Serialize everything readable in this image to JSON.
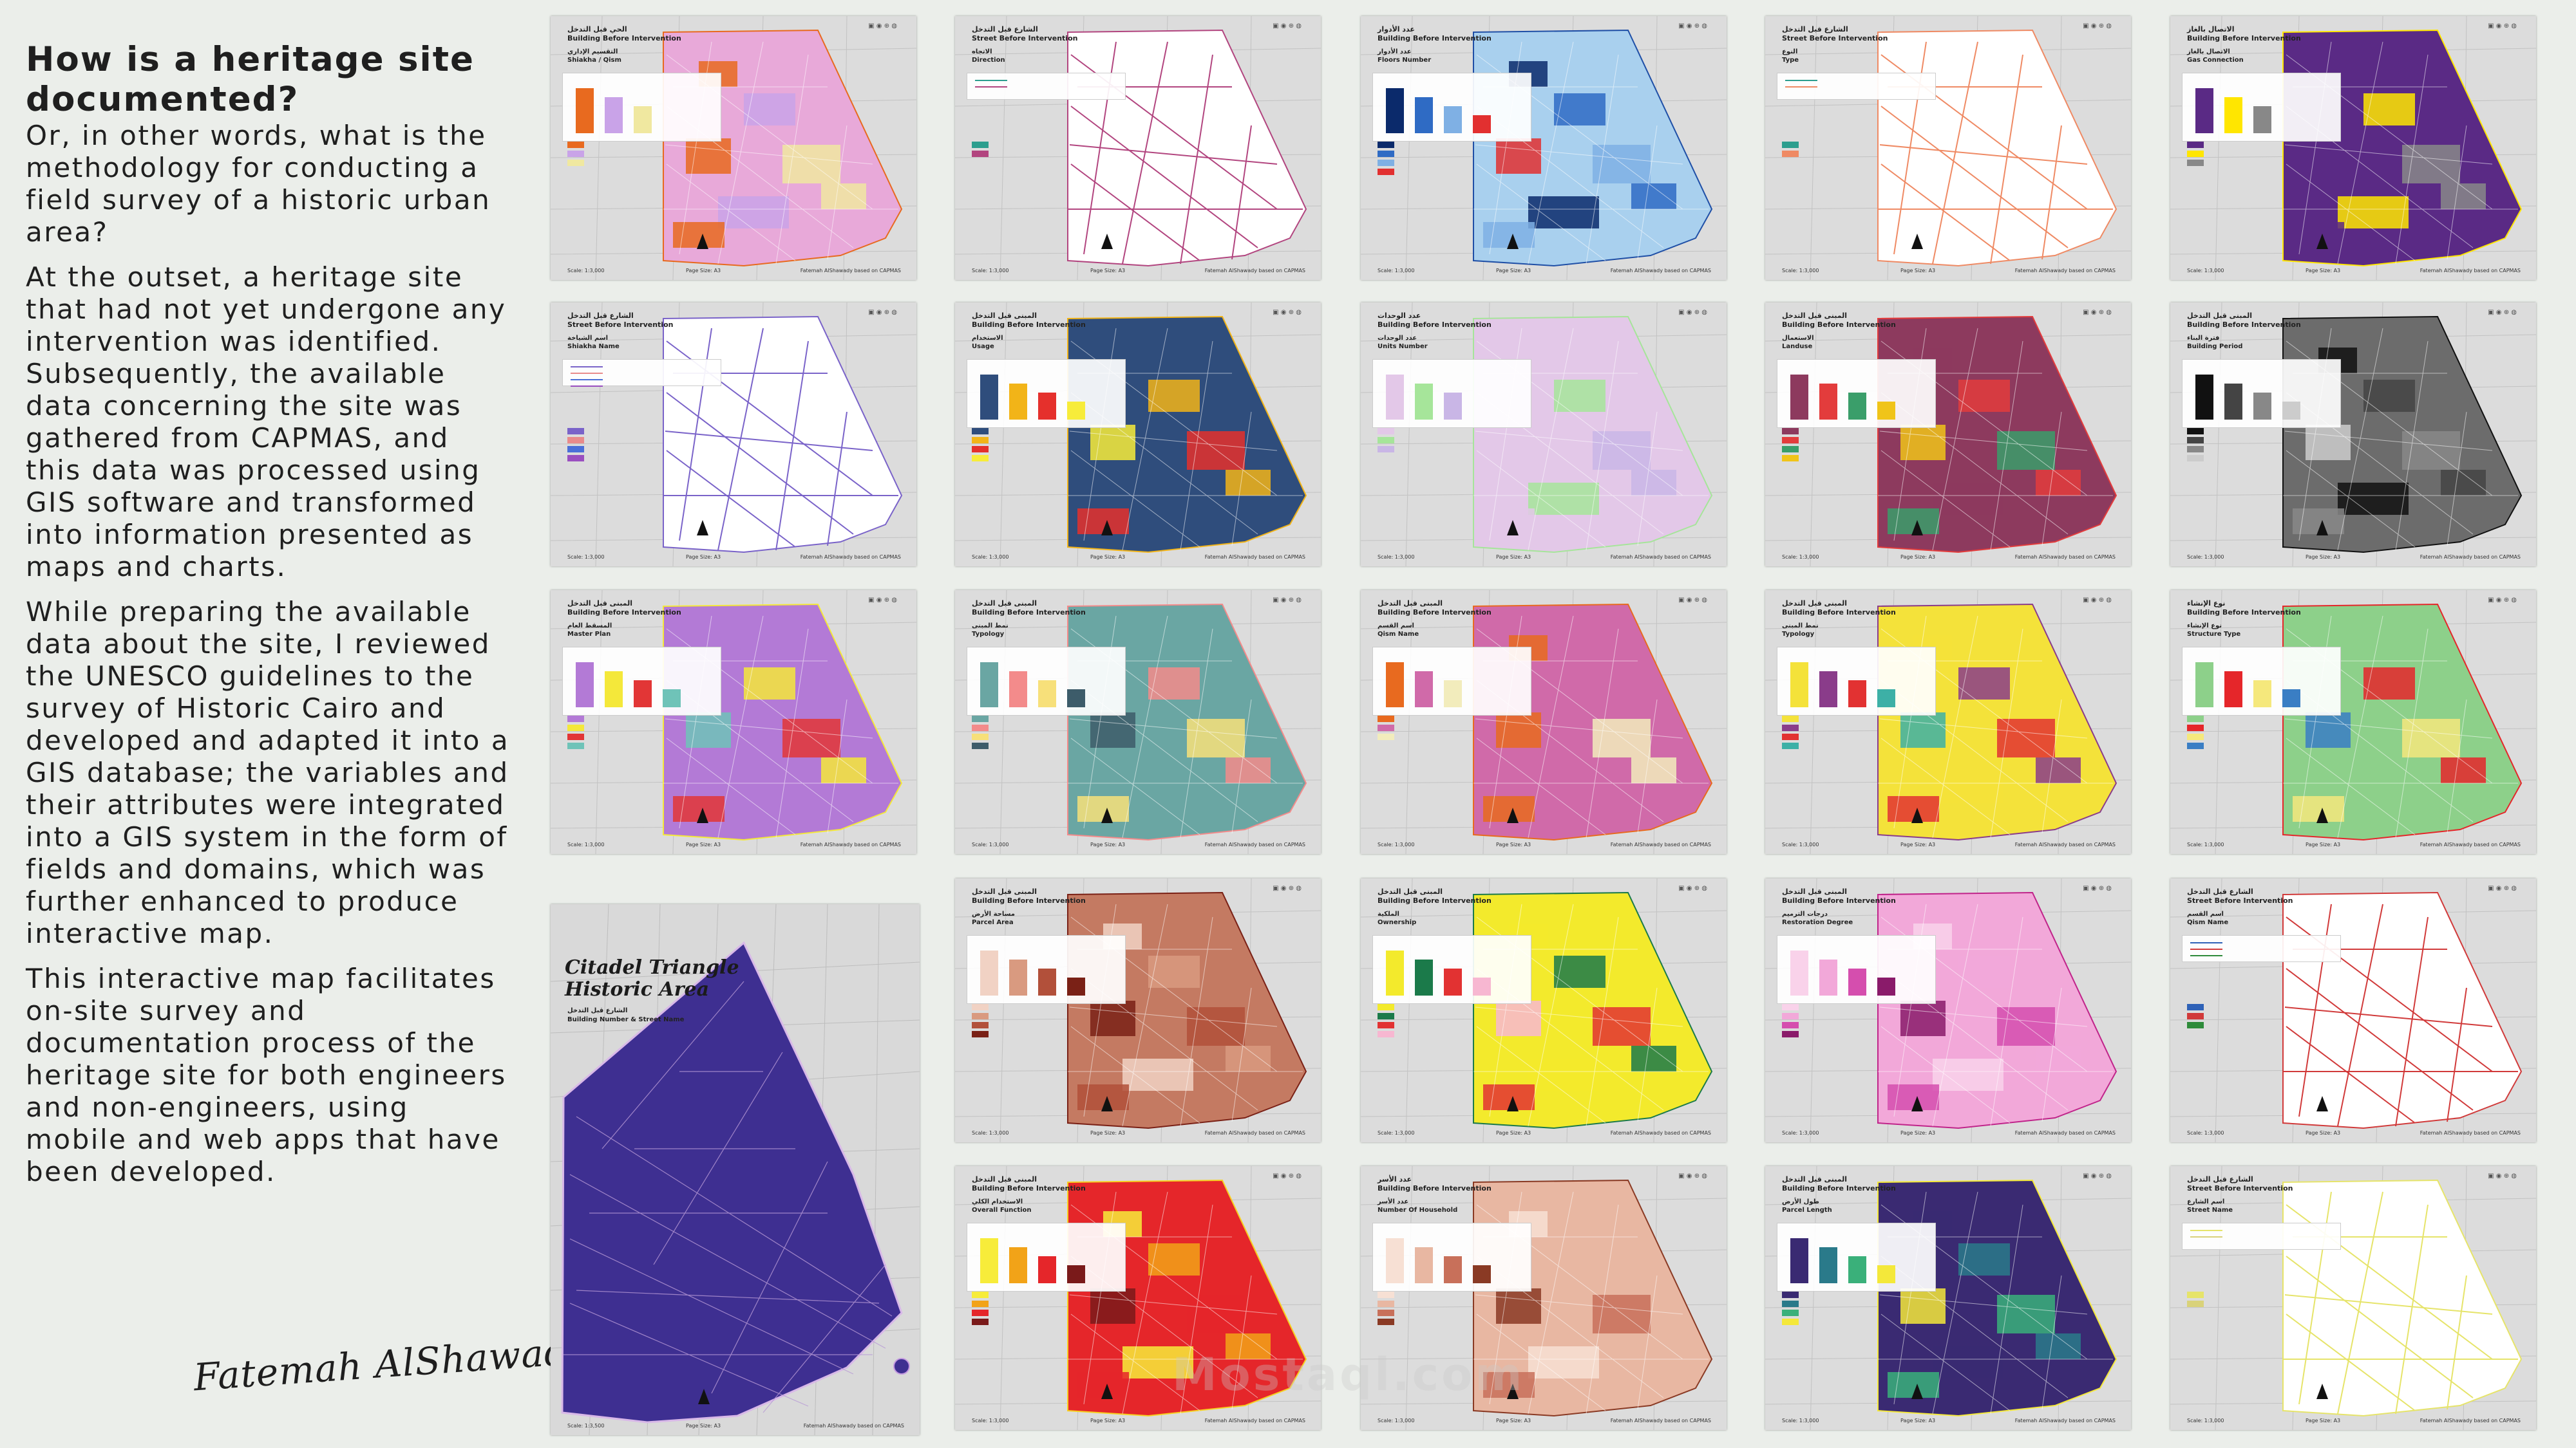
{
  "intro": {
    "title": "How is a heritage site documented?",
    "paragraphs": [
      "Or, in other words, what is the methodology for conducting a field survey of a historic urban area?",
      "At the outset, a heritage site that had not yet undergone any intervention was identified. Subsequently, the available data concerning the site was gathered from CAPMAS, and this data was processed using GIS software and transformed into information presented as maps and charts.",
      "While preparing the available data about the site, I reviewed the UNESCO guidelines to the survey of Historic Cairo and developed and adapted it into a GIS database; the variables and their attributes were integrated into a GIS system in the form of fields and domains, which was further enhanced to produce interactive map.",
      "This interactive map facilitates on-site survey and documentation process of the heritage site for both engineers and non-engineers, using mobile and web apps that have been developed."
    ],
    "signature": "Fatemah AlShawady"
  },
  "common": {
    "logos": "▣ ◉ ⊕ ◍",
    "credit": "Fatemah AlShawady based on CAPMAS",
    "page_label": "Page Size: A3"
  },
  "cover": {
    "title_line1": "Citadel Triangle",
    "title_line2": "Historic Area",
    "sub_ar": "الشارع قبل التدخل",
    "sub_en": "Building Number & Street Name",
    "scale": "Scale: 1:3,500"
  },
  "sheets": [
    {
      "hdr_ar": "الحي قبل التدخل",
      "hdr_en": "Building Before Intervention",
      "sub_ar": "التقسيم الإداري",
      "sub_en": "Shiakha / Qism",
      "scale": "Scale: 1:3,000",
      "fill": "#e8a9d9",
      "accent": "#e86a1f",
      "bg": "#f2f0c8",
      "legend": [
        "#e86a1f",
        "#c9a3e8",
        "#f0e8a0"
      ]
    },
    {
      "hdr_ar": "الشارع قبل التدخل",
      "hdr_en": "Street Before Intervention",
      "sub_ar": "الاتجاه",
      "sub_en": "Direction",
      "scale": "Scale: 1:3,000",
      "fill": "#ffffff",
      "accent": "#b2457f",
      "bg": "#ffffff",
      "legend": [
        "#2c9e8e",
        "#b2457f"
      ]
    },
    {
      "hdr_ar": "عدد الأدوار",
      "hdr_en": "Building Before Intervention",
      "sub_ar": "عدد الأدوار",
      "sub_en": "Floors Number",
      "scale": "Scale: 1:3,000",
      "fill": "#a9d0ee",
      "accent": "#1f4fa6",
      "bg": "#ffffff",
      "legend": [
        "#0b2a6b",
        "#2f6bc4",
        "#7fb0e4",
        "#e23030"
      ]
    },
    {
      "hdr_ar": "الشارع قبل التدخل",
      "hdr_en": "Street Before Intervention",
      "sub_ar": "النوع",
      "sub_en": "Type",
      "scale": "Scale: 1:3,000",
      "fill": "#ffffff",
      "accent": "#ef8a64",
      "bg": "#ffffff",
      "legend": [
        "#2c9e8e",
        "#ef8a64"
      ]
    },
    {
      "hdr_ar": "الاتصال بالغاز",
      "hdr_en": "Building Before Intervention",
      "sub_ar": "الاتصال بالغاز",
      "sub_en": "Gas Connection",
      "scale": "Scale: 1:3,000",
      "fill": "#5a2a85",
      "accent": "#ffe600",
      "bg": "#ffffff",
      "legend": [
        "#5a2a85",
        "#ffe600",
        "#888888"
      ]
    },
    {
      "hdr_ar": "الشارع قبل التدخل",
      "hdr_en": "Street Before Intervention",
      "sub_ar": "اسم الشياخة",
      "sub_en": "Shiakha Name",
      "scale": "Scale: 1:3,000",
      "fill": "#ffffff",
      "accent": "#7a63c9",
      "bg": "#ffffff",
      "legend": [
        "#7a63c9",
        "#e98b8b",
        "#4b6fd8",
        "#9a4fc0"
      ]
    },
    {
      "hdr_ar": "المبنى قبل التدخل",
      "hdr_en": "Building Before Intervention",
      "sub_ar": "الاستخدام",
      "sub_en": "Usage",
      "scale": "Scale: 1:3,000",
      "fill": "#2f4d7c",
      "accent": "#f2b418",
      "bg": "#ffffff",
      "legend": [
        "#2f4d7c",
        "#f2b418",
        "#e5302c",
        "#f7ec3a"
      ]
    },
    {
      "hdr_ar": "عدد الوحدات",
      "hdr_en": "Building Before Intervention",
      "sub_ar": "عدد الوحدات",
      "sub_en": "Units Number",
      "scale": "Scale: 1:3,000",
      "fill": "#e3c8e8",
      "accent": "#a6e59a",
      "bg": "#ffffff",
      "legend": [
        "#e3c8e8",
        "#a6e59a",
        "#c9b6e6"
      ]
    },
    {
      "hdr_ar": "المبنى قبل التدخل",
      "hdr_en": "Building Before Intervention",
      "sub_ar": "الاستعمال",
      "sub_en": "Landuse",
      "scale": "Scale: 1:3,000",
      "fill": "#8d3a5e",
      "accent": "#e33c3c",
      "bg": "#ffffff",
      "legend": [
        "#8d3a5e",
        "#e33c3c",
        "#3a9e6a",
        "#f0c419"
      ]
    },
    {
      "hdr_ar": "المبنى قبل التدخل",
      "hdr_en": "Building Before Intervention",
      "sub_ar": "فترة البناء",
      "sub_en": "Building Period",
      "scale": "Scale: 1:3,000",
      "fill": "#6c6c6c",
      "accent": "#111111",
      "bg": "#ffffff",
      "legend": [
        "#111111",
        "#444444",
        "#888888",
        "#cccccc"
      ]
    },
    {
      "hdr_ar": "المبنى قبل التدخل",
      "hdr_en": "Building Before Intervention",
      "sub_ar": "المسقط العام",
      "sub_en": "Master Plan",
      "scale": "Scale: 1:3,000",
      "fill": "#b37ad6",
      "accent": "#f4e83a",
      "bg": "#ffffff",
      "legend": [
        "#b37ad6",
        "#f4e83a",
        "#e23636",
        "#6fc3b8"
      ]
    },
    {
      "hdr_ar": "المبنى قبل التدخل",
      "hdr_en": "Building Before Intervention",
      "sub_ar": "نمط المبنى",
      "sub_en": "Typology",
      "scale": "Scale: 1:3,000",
      "fill": "#6aa6a3",
      "accent": "#f38b8b",
      "bg": "#ffffff",
      "legend": [
        "#6aa6a3",
        "#f38b8b",
        "#f7e07a",
        "#3d5c6a"
      ]
    },
    {
      "hdr_ar": "المبنى قبل التدخل",
      "hdr_en": "Building Before Intervention",
      "sub_ar": "اسم القسم",
      "sub_en": "Qism Name",
      "scale": "Scale: 1:3,000",
      "fill": "#d06aa9",
      "accent": "#e86a1f",
      "bg": "#f2ecbc",
      "legend": [
        "#e86a1f",
        "#d06aa9",
        "#f2ecbc"
      ]
    },
    {
      "hdr_ar": "المبنى قبل التدخل",
      "hdr_en": "Building Before Intervention",
      "sub_ar": "نمط المبنى",
      "sub_en": "Typology",
      "scale": "Scale: 1:3,000",
      "fill": "#f4e23a",
      "accent": "#8a3c8a",
      "bg": "#ffffff",
      "legend": [
        "#f4e23a",
        "#8a3c8a",
        "#e23232",
        "#3db0a6"
      ]
    },
    {
      "hdr_ar": "نوع الإنشاء",
      "hdr_en": "Building Before Intervention",
      "sub_ar": "نوع الإنشاء",
      "sub_en": "Structure Type",
      "scale": "Scale: 1:3,000",
      "fill": "#8dd08a",
      "accent": "#e5262a",
      "bg": "#ffffff",
      "legend": [
        "#8dd08a",
        "#e5262a",
        "#f5e87c",
        "#3a7ec4"
      ]
    },
    {
      "hdr_ar": "المبنى قبل التدخل",
      "hdr_en": "Building Before Intervention",
      "sub_ar": "مساحة الأرض",
      "sub_en": "Parcel Area",
      "scale": "Scale: 1:3,000",
      "fill": "#c47a62",
      "accent": "#7a2116",
      "bg": "#ffffff",
      "legend": [
        "#f1d2c4",
        "#d99a80",
        "#b2503a",
        "#7a2116"
      ]
    },
    {
      "hdr_ar": "المبنى قبل التدخل",
      "hdr_en": "Building Before Intervention",
      "sub_ar": "الملكية",
      "sub_en": "Ownership",
      "scale": "Scale: 1:3,000",
      "fill": "#f3ea2c",
      "accent": "#1b7a4a",
      "bg": "#ffffff",
      "legend": [
        "#f3ea2c",
        "#1b7a4a",
        "#e23232",
        "#f7b7d1"
      ]
    },
    {
      "hdr_ar": "المبنى قبل التدخل",
      "hdr_en": "Building Before Intervention",
      "sub_ar": "درجات الترميم",
      "sub_en": "Restoration Degree",
      "scale": "Scale: 1:3,000",
      "fill": "#f2a8d9",
      "accent": "#c0248a",
      "bg": "#ffffff",
      "legend": [
        "#f9d2ea",
        "#f2a8d9",
        "#d54eae",
        "#8a1b6a"
      ]
    },
    {
      "hdr_ar": "الشارع قبل التدخل",
      "hdr_en": "Street Before Intervention",
      "sub_ar": "اسم القسم",
      "sub_en": "Qism Name",
      "scale": "Scale: 1:3,000",
      "fill": "#ffffff",
      "accent": "#d13a3a",
      "bg": "#ffffff",
      "legend": [
        "#2f62b7",
        "#d13a3a",
        "#2e8b3a"
      ]
    },
    {
      "hdr_ar": "المبنى قبل التدخل",
      "hdr_en": "Building Before Intervention",
      "sub_ar": "الاستخدام الكلي",
      "sub_en": "Overall Function",
      "scale": "Scale: 1:3,000",
      "fill": "#e5262a",
      "accent": "#f7d021",
      "bg": "#ffffff",
      "legend": [
        "#f7ec3a",
        "#f2a318",
        "#e5262a",
        "#7a1a1a"
      ]
    },
    {
      "hdr_ar": "عدد الأسر",
      "hdr_en": "Building Before Intervention",
      "sub_ar": "عدد الأسر",
      "sub_en": "Number Of Household",
      "scale": "Scale: 1:3,000",
      "fill": "#e8b7a2",
      "accent": "#8a3a24",
      "bg": "#ffffff",
      "legend": [
        "#f7e0d4",
        "#e8b7a2",
        "#c8705a",
        "#8a3a24"
      ]
    },
    {
      "hdr_ar": "المبنى قبل التدخل",
      "hdr_en": "Building Before Intervention",
      "sub_ar": "طول الأرض",
      "sub_en": "Parcel Length",
      "scale": "Scale: 1:3,000",
      "fill": "#3a2a72",
      "accent": "#f4e83a",
      "bg": "#ffffff",
      "legend": [
        "#3a2a72",
        "#2a7a8a",
        "#3ab07a",
        "#f4e83a"
      ]
    },
    {
      "hdr_ar": "الشارع قبل التدخل",
      "hdr_en": "Street Before Intervention",
      "sub_ar": "اسم الشارع",
      "sub_en": "Street Name",
      "scale": "Scale: 1:3,000",
      "fill": "#ffffff",
      "accent": "#e6e46a",
      "bg": "#ffffff",
      "legend": [
        "#e6e46a",
        "#d9d27a"
      ]
    }
  ],
  "watermark": "Mostaql.com"
}
